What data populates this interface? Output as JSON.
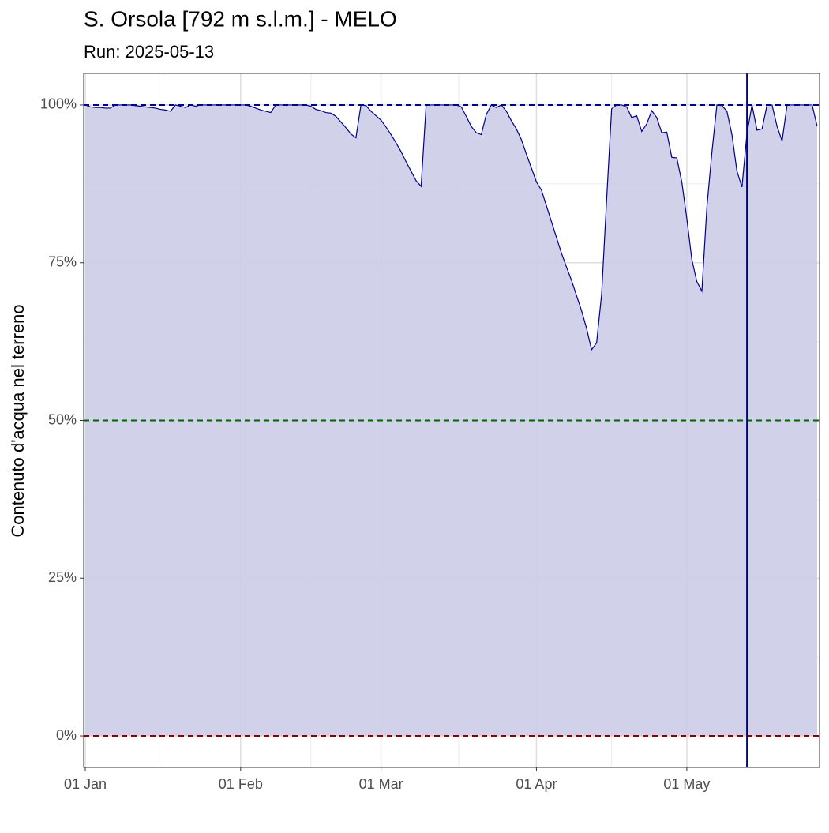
{
  "chart_data": {
    "type": "area",
    "title": "S. Orsola [792 m s.l.m.] - MELO",
    "subtitle": "Run: 2025-05-13",
    "y_label": "Contenuto d'acqua nel terreno",
    "x": [
      "01 Jan",
      "02 Jan",
      "03 Jan",
      "04 Jan",
      "05 Jan",
      "06 Jan",
      "07 Jan",
      "08 Jan",
      "09 Jan",
      "10 Jan",
      "11 Jan",
      "12 Jan",
      "13 Jan",
      "14 Jan",
      "15 Jan",
      "16 Jan",
      "17 Jan",
      "18 Jan",
      "19 Jan",
      "20 Jan",
      "21 Jan",
      "22 Jan",
      "23 Jan",
      "24 Jan",
      "25 Jan",
      "26 Jan",
      "27 Jan",
      "28 Jan",
      "29 Jan",
      "30 Jan",
      "31 Jan",
      "01 Feb",
      "02 Feb",
      "03 Feb",
      "04 Feb",
      "05 Feb",
      "06 Feb",
      "07 Feb",
      "08 Feb",
      "09 Feb",
      "10 Feb",
      "11 Feb",
      "12 Feb",
      "13 Feb",
      "14 Feb",
      "15 Feb",
      "16 Feb",
      "17 Feb",
      "18 Feb",
      "19 Feb",
      "20 Feb",
      "21 Feb",
      "22 Feb",
      "23 Feb",
      "24 Feb",
      "25 Feb",
      "26 Feb",
      "27 Feb",
      "28 Feb",
      "01 Mar",
      "02 Mar",
      "03 Mar",
      "04 Mar",
      "05 Mar",
      "06 Mar",
      "07 Mar",
      "08 Mar",
      "09 Mar",
      "10 Mar",
      "11 Mar",
      "12 Mar",
      "13 Mar",
      "14 Mar",
      "15 Mar",
      "16 Mar",
      "17 Mar",
      "18 Mar",
      "19 Mar",
      "20 Mar",
      "21 Mar",
      "22 Mar",
      "23 Mar",
      "24 Mar",
      "25 Mar",
      "26 Mar",
      "27 Mar",
      "28 Mar",
      "29 Mar",
      "30 Mar",
      "31 Mar",
      "01 Apr",
      "02 Apr",
      "03 Apr",
      "04 Apr",
      "05 Apr",
      "06 Apr",
      "07 Apr",
      "08 Apr",
      "09 Apr",
      "10 Apr",
      "11 Apr",
      "12 Apr",
      "13 Apr",
      "14 Apr",
      "15 Apr",
      "16 Apr",
      "17 Apr",
      "18 Apr",
      "19 Apr",
      "20 Apr",
      "21 Apr",
      "22 Apr",
      "23 Apr",
      "24 Apr",
      "25 Apr",
      "26 Apr",
      "27 Apr",
      "28 Apr",
      "29 Apr",
      "30 Apr",
      "01 May",
      "02 May",
      "03 May",
      "04 May",
      "05 May",
      "06 May",
      "07 May",
      "08 May",
      "09 May",
      "10 May",
      "11 May",
      "12 May",
      "13 May",
      "14 May",
      "15 May",
      "16 May",
      "17 May",
      "18 May",
      "19 May",
      "20 May",
      "21 May",
      "22 May",
      "23 May",
      "24 May",
      "25 May",
      "26 May",
      "27 May"
    ],
    "values": [
      100,
      99.7,
      99.6,
      99.6,
      99.5,
      99.5,
      100,
      100,
      100,
      100,
      99.9,
      99.8,
      99.7,
      99.6,
      99.5,
      99.3,
      99.2,
      99.0,
      100,
      99.8,
      99.6,
      100,
      99.8,
      100,
      100,
      100,
      100,
      100,
      100,
      100,
      100,
      100,
      100,
      99.8,
      99.5,
      99.2,
      99.0,
      98.8,
      100,
      100,
      100,
      100,
      100,
      100,
      100,
      99.8,
      99.3,
      99.1,
      98.8,
      98.7,
      98.2,
      97.3,
      96.4,
      95.4,
      94.8,
      100,
      99.9,
      99.0,
      98.3,
      97.6,
      96.5,
      95.3,
      94.0,
      92.6,
      91.0,
      89.5,
      88.0,
      87.1,
      100,
      100,
      100,
      100,
      100,
      100,
      100,
      99.7,
      98.2,
      96.6,
      95.6,
      95.3,
      98.5,
      100,
      99.6,
      100,
      99.0,
      97.5,
      96.2,
      94.5,
      92.2,
      90.0,
      87.8,
      86.5,
      84.0,
      81.5,
      79.0,
      76.5,
      74.3,
      72.2,
      69.8,
      67.4,
      64.6,
      61.2,
      62.3,
      70.0,
      85.0,
      99.4,
      100,
      100,
      99.7,
      98.0,
      98.3,
      95.8,
      97.0,
      99.1,
      98.0,
      95.6,
      95.7,
      91.7,
      91.6,
      87.8,
      82.0,
      75.5,
      72.0,
      70.5,
      83.8,
      92.5,
      100,
      99.9,
      99.0,
      95.3,
      89.5,
      87.0,
      95.5,
      100,
      96.0,
      96.2,
      100,
      100,
      96.6,
      94.3,
      100,
      100,
      100,
      100,
      100,
      100,
      96.6
    ],
    "color": "#00008b",
    "fill": "#ccccE8",
    "xticks": [
      "01 Jan",
      "01 Feb",
      "01 Mar",
      "01 Apr",
      "01 May"
    ],
    "ylim": [
      -5,
      105
    ],
    "yticks": [
      {
        "value": 0,
        "label": "0%"
      },
      {
        "value": 25,
        "label": "25%"
      },
      {
        "value": 50,
        "label": "50%"
      },
      {
        "value": 75,
        "label": "75%"
      },
      {
        "value": 100,
        "label": "100%"
      }
    ],
    "hlines": [
      {
        "value": 100,
        "color": "#00008b"
      },
      {
        "value": 50,
        "color": "#006400"
      },
      {
        "value": 0,
        "color": "#8b0000"
      }
    ],
    "vline": {
      "x": "13 May",
      "color": "#00008b"
    },
    "grid": true
  }
}
